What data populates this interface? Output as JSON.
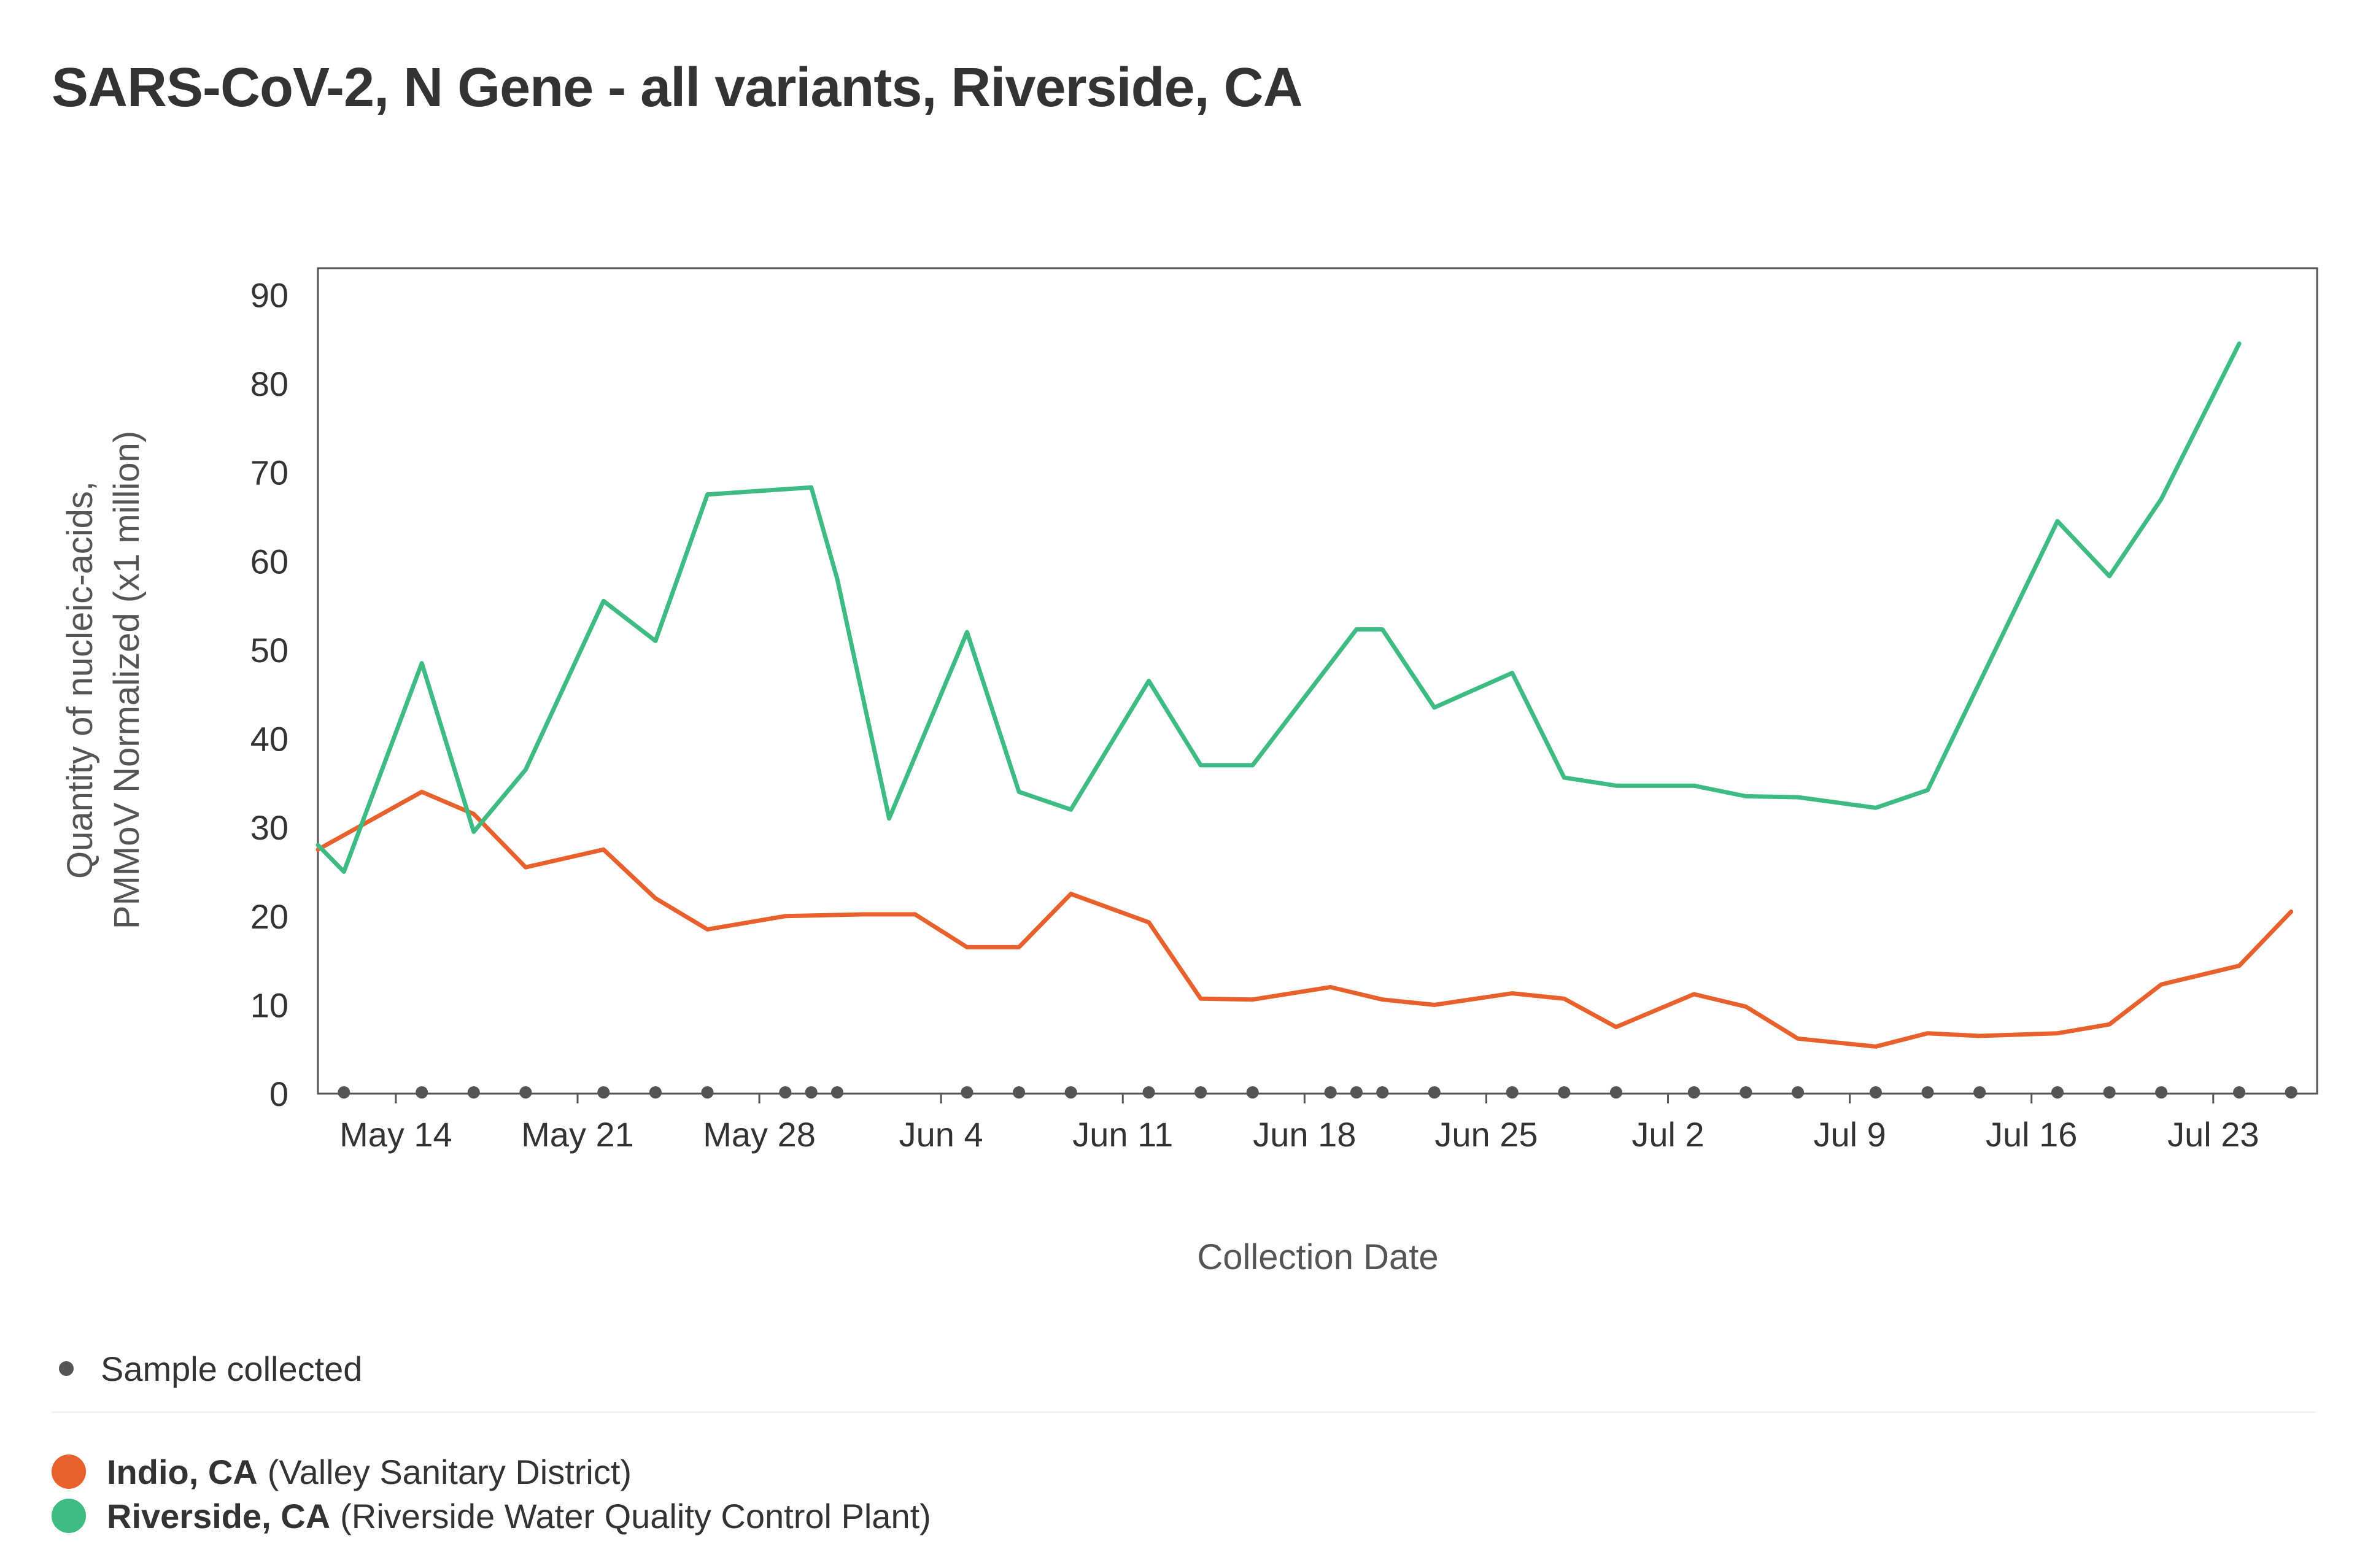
{
  "title": "SARS-CoV-2, N Gene - all variants, Riverside, CA",
  "legend": {
    "sample_label": "Sample collected",
    "series": [
      {
        "name": "Indio, CA",
        "detail": "(Valley Sanitary District)",
        "color": "#e8612c"
      },
      {
        "name": "Riverside, CA",
        "detail": "(Riverside Water Quality Control Plant)",
        "color": "#3dbb82"
      }
    ]
  },
  "chart_data": {
    "type": "line",
    "title": "SARS-CoV-2, N Gene - all variants, Riverside, CA",
    "xlabel": "Collection Date",
    "ylabel": "Quantity of nucleic-acids, PMMoV Normalized (x1 million)",
    "ylabel_lines": [
      "Quantity of nucleic-acids,",
      "PMMoV Normalized (x1 million)"
    ],
    "ylim": [
      0,
      93
    ],
    "xlim": [
      "2022-05-11",
      "2022-07-27"
    ],
    "yticks": [
      0,
      10,
      20,
      30,
      40,
      50,
      60,
      70,
      80,
      90
    ],
    "xticks": [
      {
        "date": "2022-05-14",
        "label": "May 14"
      },
      {
        "date": "2022-05-21",
        "label": "May 21"
      },
      {
        "date": "2022-05-28",
        "label": "May 28"
      },
      {
        "date": "2022-06-04",
        "label": "Jun 4"
      },
      {
        "date": "2022-06-11",
        "label": "Jun 11"
      },
      {
        "date": "2022-06-18",
        "label": "Jun 18"
      },
      {
        "date": "2022-06-25",
        "label": "Jun 25"
      },
      {
        "date": "2022-07-02",
        "label": "Jul 2"
      },
      {
        "date": "2022-07-09",
        "label": "Jul 9"
      },
      {
        "date": "2022-07-16",
        "label": "Jul 16"
      },
      {
        "date": "2022-07-23",
        "label": "Jul 23"
      }
    ],
    "grid": false,
    "legend_position": "bottom",
    "sample_dates": [
      "2022-05-12",
      "2022-05-15",
      "2022-05-17",
      "2022-05-19",
      "2022-05-22",
      "2022-05-24",
      "2022-05-26",
      "2022-05-29",
      "2022-05-30",
      "2022-05-31",
      "2022-06-05",
      "2022-06-07",
      "2022-06-09",
      "2022-06-12",
      "2022-06-14",
      "2022-06-16",
      "2022-06-19",
      "2022-06-20",
      "2022-06-21",
      "2022-06-23",
      "2022-06-26",
      "2022-06-28",
      "2022-06-30",
      "2022-07-03",
      "2022-07-05",
      "2022-07-07",
      "2022-07-10",
      "2022-07-12",
      "2022-07-14",
      "2022-07-17",
      "2022-07-19",
      "2022-07-21",
      "2022-07-24",
      "2022-07-26"
    ],
    "series": [
      {
        "name": "Indio, CA",
        "color": "#e8612c",
        "points": [
          [
            "2022-05-11",
            27.5
          ],
          [
            "2022-05-15",
            34
          ],
          [
            "2022-05-17",
            31.5
          ],
          [
            "2022-05-19",
            25.5
          ],
          [
            "2022-05-22",
            27.5
          ],
          [
            "2022-05-24",
            22
          ],
          [
            "2022-05-26",
            18.5
          ],
          [
            "2022-05-29",
            20
          ],
          [
            "2022-06-01",
            20.2
          ],
          [
            "2022-06-03",
            20.2
          ],
          [
            "2022-06-05",
            16.5
          ],
          [
            "2022-06-07",
            16.5
          ],
          [
            "2022-06-09",
            22.5
          ],
          [
            "2022-06-12",
            19.3
          ],
          [
            "2022-06-14",
            10.7
          ],
          [
            "2022-06-16",
            10.6
          ],
          [
            "2022-06-19",
            12
          ],
          [
            "2022-06-21",
            10.6
          ],
          [
            "2022-06-23",
            10
          ],
          [
            "2022-06-26",
            11.3
          ],
          [
            "2022-06-28",
            10.7
          ],
          [
            "2022-06-30",
            7.5
          ],
          [
            "2022-07-03",
            11.2
          ],
          [
            "2022-07-05",
            9.8
          ],
          [
            "2022-07-07",
            6.2
          ],
          [
            "2022-07-10",
            5.3
          ],
          [
            "2022-07-12",
            6.8
          ],
          [
            "2022-07-14",
            6.5
          ],
          [
            "2022-07-17",
            6.8
          ],
          [
            "2022-07-19",
            7.8
          ],
          [
            "2022-07-21",
            12.3
          ],
          [
            "2022-07-24",
            14.4
          ],
          [
            "2022-07-26",
            20.5
          ]
        ]
      },
      {
        "name": "Riverside, CA",
        "color": "#3dbb82",
        "points": [
          [
            "2022-05-11",
            28
          ],
          [
            "2022-05-12",
            25
          ],
          [
            "2022-05-15",
            48.5
          ],
          [
            "2022-05-17",
            29.5
          ],
          [
            "2022-05-19",
            36.5
          ],
          [
            "2022-05-22",
            55.5
          ],
          [
            "2022-05-24",
            51
          ],
          [
            "2022-05-26",
            67.5
          ],
          [
            "2022-05-30",
            68.3
          ],
          [
            "2022-05-31",
            58
          ],
          [
            "2022-06-02",
            31
          ],
          [
            "2022-06-05",
            52
          ],
          [
            "2022-06-07",
            34
          ],
          [
            "2022-06-09",
            32
          ],
          [
            "2022-06-12",
            46.5
          ],
          [
            "2022-06-14",
            37
          ],
          [
            "2022-06-16",
            37
          ],
          [
            "2022-06-20",
            52.3
          ],
          [
            "2022-06-21",
            52.3
          ],
          [
            "2022-06-23",
            43.5
          ],
          [
            "2022-06-26",
            47.4
          ],
          [
            "2022-06-28",
            35.6
          ],
          [
            "2022-06-30",
            34.7
          ],
          [
            "2022-07-03",
            34.7
          ],
          [
            "2022-07-05",
            33.5
          ],
          [
            "2022-07-07",
            33.4
          ],
          [
            "2022-07-10",
            32.2
          ],
          [
            "2022-07-12",
            34.2
          ],
          [
            "2022-07-17",
            64.5
          ],
          [
            "2022-07-19",
            58.3
          ],
          [
            "2022-07-21",
            67
          ],
          [
            "2022-07-24",
            84.5
          ]
        ]
      }
    ]
  }
}
